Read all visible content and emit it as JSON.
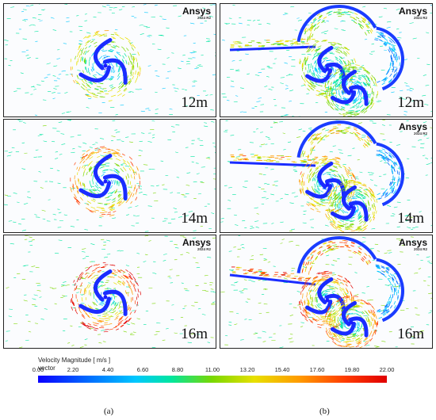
{
  "panels": [
    {
      "id": "a-12",
      "watermark": "Ansys",
      "version": "2024 R2",
      "label": "12m",
      "col": "a",
      "row": 0
    },
    {
      "id": "b-12",
      "watermark": "Ansys",
      "version": "2024 R2",
      "label": "12m",
      "col": "b",
      "row": 0
    },
    {
      "id": "a-14",
      "watermark": "",
      "version": "",
      "label": "14m",
      "col": "a",
      "row": 1
    },
    {
      "id": "b-14",
      "watermark": "Ansys",
      "version": "2024 R2",
      "label": "14m",
      "col": "b",
      "row": 1
    },
    {
      "id": "a-16",
      "watermark": "Ansys",
      "version": "2024 R2",
      "label": "16m",
      "col": "a",
      "row": 2
    },
    {
      "id": "b-16",
      "watermark": "Ansys",
      "version": "2024 R2",
      "label": "16m",
      "col": "b",
      "row": 2
    }
  ],
  "legend": {
    "title_line1": "Velocity Magnitude [ m/s ]",
    "title_line2": "vector",
    "ticks": [
      "0.00",
      "2.20",
      "4.40",
      "6.60",
      "8.80",
      "11.00",
      "13.20",
      "15.40",
      "17.60",
      "19.80",
      "22.00"
    ],
    "colors": [
      "#0a00ff",
      "#0070ff",
      "#00c8ff",
      "#00e6a0",
      "#7ad800",
      "#e8e000",
      "#ff9a00",
      "#ff3c00",
      "#e00000"
    ]
  },
  "sublabels": {
    "a": "(a)",
    "b": "(b)"
  }
}
